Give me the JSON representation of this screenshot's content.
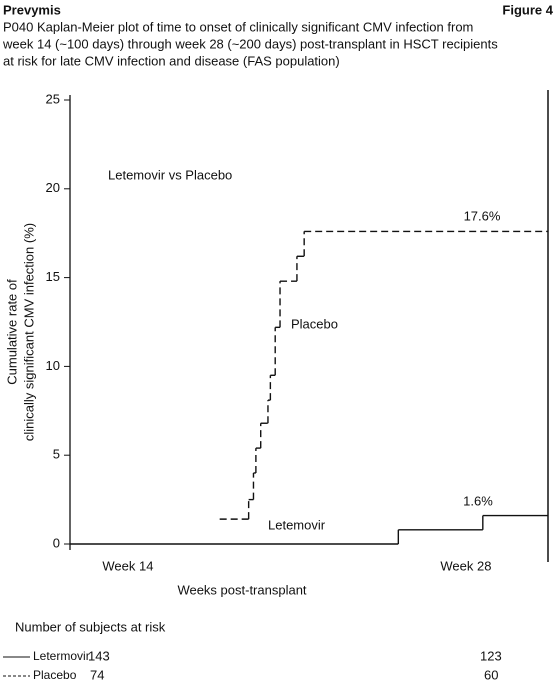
{
  "header": {
    "brand": "Prevymis",
    "figure": "Figure 4"
  },
  "chart_data": {
    "type": "step",
    "title_lines": [
      "P040 Kaplan-Meier plot of time to onset of clinically significant CMV infection from",
      "week 14 (~100 days) through week 28 (~200 days) post-transplant in HSCT recipients",
      "at risk for late CMV infection and disease (FAS population)"
    ],
    "ylabel_lines": [
      "Cumulative rate of",
      "clinically significant CMV infection (%)"
    ],
    "xlabel": "Weeks post-transplant",
    "xlim": [
      11.6,
      31.4
    ],
    "xticks": [
      {
        "value": 14,
        "label": "Week 14"
      },
      {
        "value": 28,
        "label": "Week 28"
      }
    ],
    "ylim": [
      0,
      25
    ],
    "yticks": [
      0,
      5,
      10,
      15,
      20,
      25
    ],
    "annotations": [
      "Letemovir vs Placebo",
      "Placebo",
      "Letemovir",
      "17.6%",
      "1.6%"
    ],
    "series": [
      {
        "name": "Placebo",
        "color": "#111111",
        "dash": true,
        "x": [
          17.8,
          19.0,
          19.2,
          19.3,
          19.5,
          19.8,
          19.9,
          20.1,
          20.3,
          21.0,
          21.3,
          31.4
        ],
        "values": [
          1.4,
          2.5,
          4.0,
          5.4,
          6.8,
          8.1,
          9.5,
          12.2,
          14.8,
          16.2,
          17.6,
          17.6
        ]
      },
      {
        "name": "Letermovir",
        "color": "#111111",
        "dash": false,
        "x": [
          11.6,
          25.2,
          28.7,
          31.4
        ],
        "values": [
          0,
          0.8,
          1.6,
          1.6
        ]
      }
    ]
  },
  "at_risk": {
    "title": "Number of subjects at risk",
    "rows": [
      {
        "name": "Letermovir",
        "week14": "143",
        "week28": "123"
      },
      {
        "name": "Placebo",
        "week14": "74",
        "week28": "60"
      }
    ]
  }
}
